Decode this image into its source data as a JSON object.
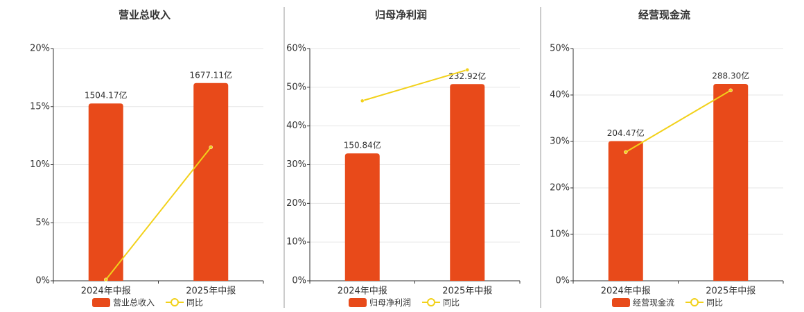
{
  "chart_data": [
    {
      "type": "bar_line",
      "title": "营业总收入",
      "categories": [
        "2024年中报",
        "2025年中报"
      ],
      "ylim": [
        0,
        20
      ],
      "yticks": [
        {
          "value": 0,
          "label": "0%"
        },
        {
          "value": 5,
          "label": "5%"
        },
        {
          "value": 10,
          "label": "10%"
        },
        {
          "value": 15,
          "label": "15%"
        },
        {
          "value": 20,
          "label": "20%"
        }
      ],
      "y2lim": [
        0,
        1970
      ],
      "grid": true,
      "series": [
        {
          "name": "营业总收入",
          "color": "#e84a1a",
          "axis": "y2",
          "values": [
            1504.17,
            1677.11
          ],
          "value_labels": [
            "1504.17亿",
            "1677.11亿"
          ]
        },
        {
          "name": "同比",
          "color": "#f2d11a",
          "values": [
            0.1,
            11.5
          ]
        }
      ]
    },
    {
      "type": "bar_line",
      "title": "归母净利润",
      "categories": [
        "2024年中报",
        "2025年中报"
      ],
      "ylim": [
        0,
        60
      ],
      "yticks": [
        {
          "value": 0,
          "label": "0%"
        },
        {
          "value": 10,
          "label": "10%"
        },
        {
          "value": 20,
          "label": "20%"
        },
        {
          "value": 30,
          "label": "30%"
        },
        {
          "value": 40,
          "label": "40%"
        },
        {
          "value": 50,
          "label": "50%"
        },
        {
          "value": 60,
          "label": "60%"
        }
      ],
      "y2lim": [
        0,
        275
      ],
      "grid": true,
      "series": [
        {
          "name": "归母净利润",
          "color": "#e84a1a",
          "axis": "y2",
          "values": [
            150.84,
            232.92
          ],
          "value_labels": [
            "150.84亿",
            "232.92亿"
          ]
        },
        {
          "name": "同比",
          "color": "#f2d11a",
          "values": [
            46.5,
            54.5
          ]
        }
      ]
    },
    {
      "type": "bar_line",
      "title": "经营现金流",
      "categories": [
        "2024年中报",
        "2025年中报"
      ],
      "ylim": [
        0,
        50
      ],
      "yticks": [
        {
          "value": 0,
          "label": "0%"
        },
        {
          "value": 10,
          "label": "10%"
        },
        {
          "value": 20,
          "label": "20%"
        },
        {
          "value": 30,
          "label": "30%"
        },
        {
          "value": 40,
          "label": "40%"
        },
        {
          "value": 50,
          "label": "50%"
        }
      ],
      "y2lim": [
        0,
        340
      ],
      "grid": true,
      "series": [
        {
          "name": "经营现金流",
          "color": "#e84a1a",
          "axis": "y2",
          "values": [
            204.47,
            288.3
          ],
          "value_labels": [
            "204.47亿",
            "288.30亿"
          ]
        },
        {
          "name": "同比",
          "color": "#f2d11a",
          "values": [
            27.7,
            41
          ]
        }
      ]
    }
  ]
}
